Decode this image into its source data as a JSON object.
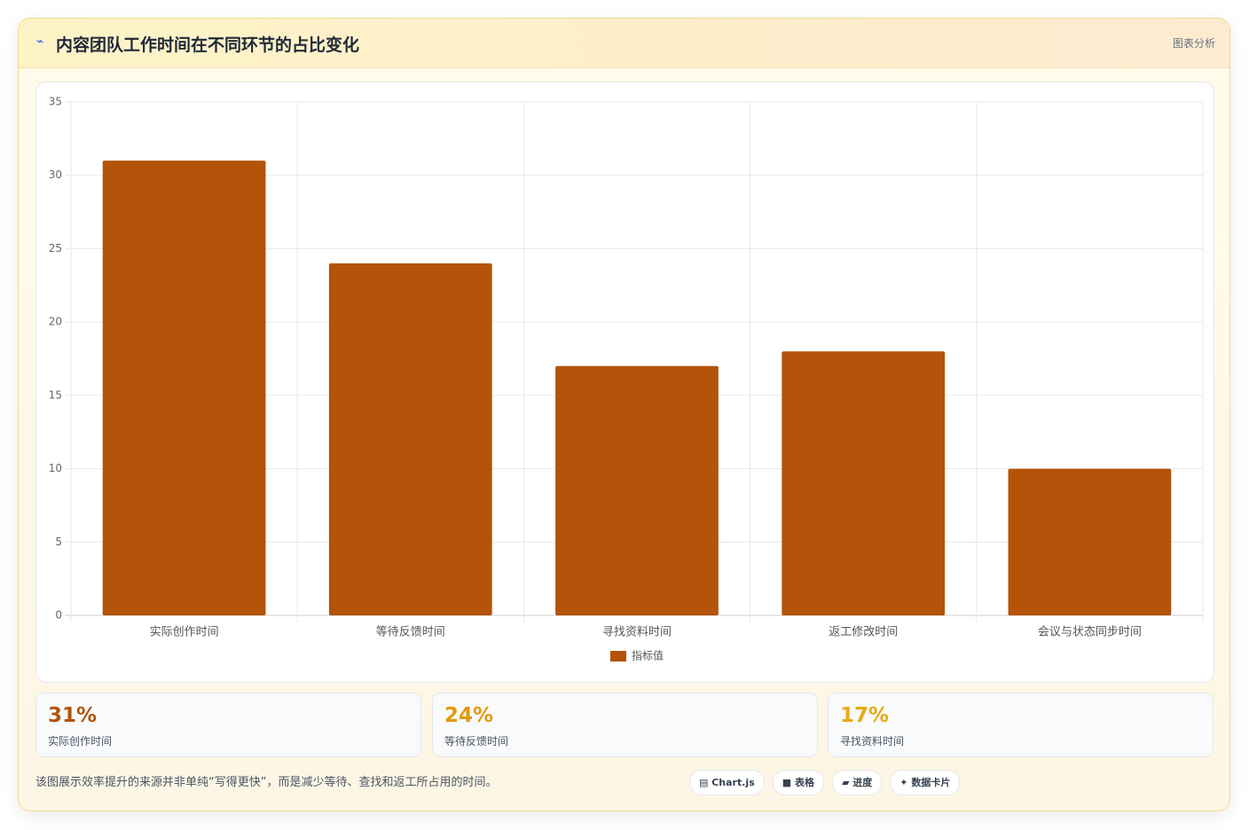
{
  "header": {
    "title": "内容团队工作时间在不同环节的占比变化",
    "badge": "图表分析"
  },
  "chart_data": {
    "type": "bar",
    "categories": [
      "实际创作时间",
      "等待反馈时间",
      "寻找资料时间",
      "返工修改时间",
      "会议与状态同步时间"
    ],
    "series": [
      {
        "name": "指标值",
        "color": "#b45309",
        "values": [
          31,
          24,
          17,
          18,
          10
        ]
      }
    ],
    "ylim": [
      0,
      35
    ],
    "yticks": [
      0,
      5,
      10,
      15,
      20,
      25,
      30,
      35
    ],
    "grid": true,
    "legend": "bottom"
  },
  "stats": [
    {
      "value": "31%",
      "label": "实际创作时间",
      "color": "#b45309"
    },
    {
      "value": "24%",
      "label": "等待反馈时间",
      "color": "#e39a0b"
    },
    {
      "value": "17%",
      "label": "寻找资料时间",
      "color": "#e8aa12"
    }
  ],
  "footnote": "该图展示效率提升的来源并非单纯“写得更快”，而是减少等待、查找和返工所占用的时间。",
  "tags": [
    "Chart.js",
    "表格",
    "进度",
    "数据卡片"
  ]
}
